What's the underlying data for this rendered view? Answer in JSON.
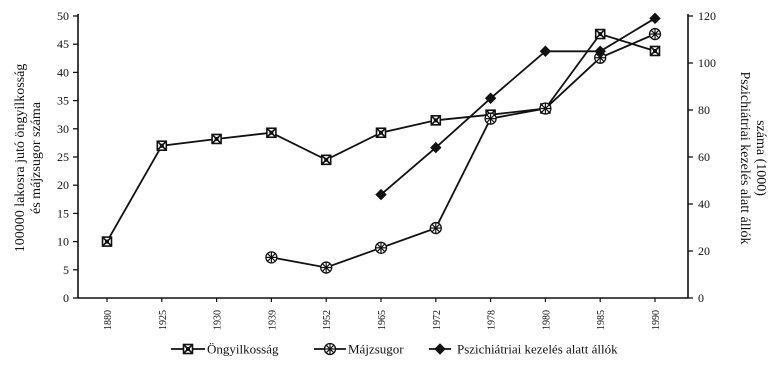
{
  "chart_data": {
    "type": "line",
    "categories": [
      "1880",
      "1925",
      "1930",
      "1939",
      "1952",
      "1965",
      "1972",
      "1978",
      "1980",
      "1985",
      "1990"
    ],
    "ylabel_left": [
      "100000 lakosra jutó öngyilkosság",
      "és májzsugor száma"
    ],
    "ylabel_right": [
      "Pszichiátriai kezelés alatt állók",
      "száma (1000)"
    ],
    "ylim_left": [
      0,
      50
    ],
    "ylim_right": [
      0,
      120
    ],
    "yticks_left": [
      "0",
      "5",
      "10",
      "15",
      "20",
      "25",
      "30",
      "35",
      "40",
      "45",
      "50"
    ],
    "yticks_right": [
      "0",
      "20",
      "40",
      "60",
      "80",
      "100",
      "120"
    ],
    "grid": false,
    "legend_position": "bottom",
    "series": [
      {
        "name": "Öngyilkosság",
        "axis": "left",
        "marker": "x-square",
        "values": [
          10,
          27,
          28.2,
          29.3,
          24.5,
          29.3,
          31.5,
          32.5,
          33.6,
          46.8,
          43.8
        ]
      },
      {
        "name": "Májzsugor",
        "axis": "left",
        "marker": "star",
        "values": [
          null,
          null,
          null,
          7.2,
          5.4,
          8.9,
          12.4,
          31.8,
          33.6,
          42.6,
          46.8
        ]
      },
      {
        "name": "Pszichiátriai kezelés alatt állók",
        "axis": "right",
        "marker": "diamond",
        "values": [
          null,
          null,
          null,
          null,
          null,
          44,
          64,
          85,
          105,
          105,
          119
        ]
      }
    ]
  }
}
